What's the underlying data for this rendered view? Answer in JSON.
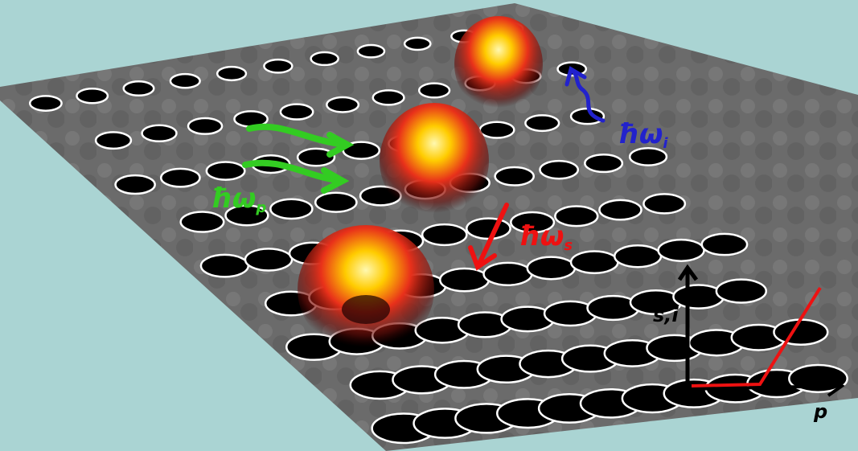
{
  "labels": {
    "pump": {
      "base": "ħω",
      "sub": "p"
    },
    "idler": {
      "base": "ħω",
      "sub": "i"
    },
    "signal": {
      "base": "ħω",
      "sub": "s"
    }
  },
  "inset": {
    "y_axis_label": "s,i",
    "x_axis_label": "p"
  }
}
